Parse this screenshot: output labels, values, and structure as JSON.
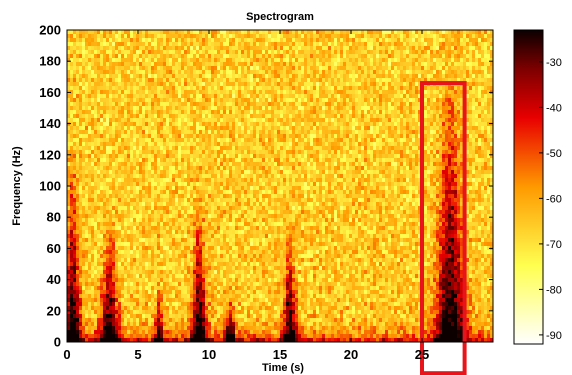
{
  "chart_data": {
    "type": "heatmap",
    "title": "Spectrogram",
    "xlabel": "Time (s)",
    "ylabel": "Frequency (Hz)",
    "xlim": [
      0,
      30
    ],
    "ylim": [
      0,
      200
    ],
    "xticks": [
      0,
      5,
      10,
      15,
      20,
      25
    ],
    "yticks": [
      0,
      20,
      40,
      60,
      80,
      100,
      120,
      140,
      160,
      180,
      200
    ],
    "colorbar": {
      "range": [
        -92,
        -23
      ],
      "ticks": [
        -30,
        -40,
        -50,
        -60,
        -70,
        -80,
        -90
      ],
      "colormap": "hot"
    },
    "bursts": [
      {
        "t": 0.4,
        "peak_hz": 110,
        "width_s": 0.6
      },
      {
        "t": 3.0,
        "peak_hz": 70,
        "width_s": 0.7
      },
      {
        "t": 6.5,
        "peak_hz": 35,
        "width_s": 0.3
      },
      {
        "t": 9.3,
        "peak_hz": 85,
        "width_s": 0.6
      },
      {
        "t": 11.5,
        "peak_hz": 25,
        "width_s": 0.4
      },
      {
        "t": 15.7,
        "peak_hz": 70,
        "width_s": 0.5
      },
      {
        "t": 27.0,
        "peak_hz": 160,
        "width_s": 1.1
      }
    ],
    "highlight": {
      "t0": 25.0,
      "t1": 28.0,
      "f0": -20,
      "f1": 166,
      "color": "#e8141c"
    }
  }
}
